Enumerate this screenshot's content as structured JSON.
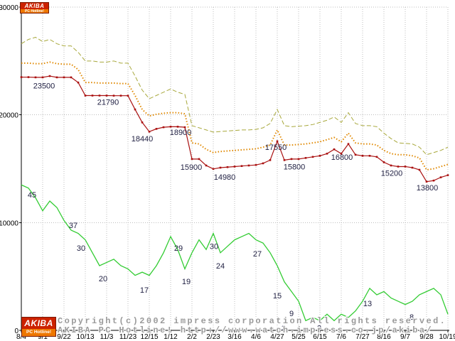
{
  "logo": {
    "title": "AKIBA",
    "subtitle": "PC Hotline!"
  },
  "footer": {
    "copyright": "Copyright(c)2002 impress corporation All rights reserved.",
    "site_line": "AKIBA PC Hotline! http://www.watch.impress.co.jp/akiba/"
  },
  "colors": {
    "axis": "#000000",
    "grid": "#bdbdbd",
    "annotation": "#222244",
    "tick_label": "#000000",
    "red": "#aa1111",
    "orange": "#e08800",
    "olive": "#a8a83c",
    "green": "#33cc33",
    "logo_red": "#cc2200",
    "logo_orange": "#ee7700",
    "copyright_gray": "#9a9a9a"
  },
  "chart_data": {
    "type": "line",
    "title": "",
    "xlabel": "",
    "ylabel": "",
    "grid": true,
    "legend": "none",
    "x_axis": {
      "tick_labels": [
        "8/4",
        "9/1",
        "9/22",
        "10/13",
        "11/3",
        "11/23",
        "12/15",
        "1/12",
        "2/2",
        "2/23",
        "3/16",
        "4/6",
        "4/27",
        "5/25",
        "6/15",
        "7/6",
        "7/27",
        "8/16",
        "9/7",
        "9/28",
        "10/19"
      ],
      "tick_positions": [
        0,
        3,
        6,
        9,
        12,
        15,
        18,
        21,
        24,
        27,
        30,
        33,
        36,
        39,
        42,
        45,
        48,
        51,
        54,
        57,
        60
      ]
    },
    "y_axis": {
      "tick_labels": [
        "0",
        "10000",
        "20000",
        "30000"
      ],
      "tick_values": [
        0,
        10000,
        20000,
        30000
      ],
      "max": 30000
    },
    "series": [
      {
        "name": "high-price-dashed-olive",
        "color": "#a8a83c",
        "dash": "6,3",
        "width": 1,
        "markers": false,
        "values": [
          26600,
          27000,
          27200,
          26800,
          27000,
          26600,
          26400,
          26400,
          25800,
          25000,
          25000,
          24900,
          24900,
          25000,
          24800,
          24800,
          23600,
          22300,
          21500,
          21800,
          22100,
          22400,
          22100,
          21900,
          19000,
          18800,
          18600,
          18400,
          18450,
          18500,
          18550,
          18600,
          18600,
          18650,
          18800,
          19200,
          20500,
          19000,
          18900,
          18950,
          19000,
          19100,
          19300,
          19500,
          19800,
          19300,
          20200,
          19200,
          19000,
          19000,
          18900,
          18300,
          17800,
          17400,
          17350,
          17300,
          17000,
          16300,
          16500,
          16700,
          17000
        ]
      },
      {
        "name": "mid-price-dotted-orange",
        "color": "#e08800",
        "dash": "1.5,2.5",
        "width": 2,
        "markers": false,
        "values": [
          24800,
          24800,
          24750,
          24750,
          24900,
          24750,
          24700,
          24700,
          24200,
          23000,
          23000,
          22950,
          22950,
          22950,
          22900,
          22900,
          21800,
          20500,
          19900,
          20050,
          20150,
          20200,
          20200,
          20100,
          17400,
          17300,
          16800,
          16500,
          16600,
          16650,
          16700,
          16750,
          16800,
          16850,
          17000,
          17200,
          18600,
          17200,
          17200,
          17250,
          17300,
          17400,
          17500,
          17700,
          17900,
          17500,
          18300,
          17400,
          17300,
          17300,
          17200,
          16700,
          16400,
          16300,
          16300,
          16200,
          16000,
          14900,
          15000,
          15200,
          15400
        ]
      },
      {
        "name": "low-price-solid-red",
        "color": "#aa1111",
        "dash": "",
        "width": 1.2,
        "markers": true,
        "values": [
          23500,
          23500,
          23480,
          23480,
          23600,
          23480,
          23480,
          23480,
          23000,
          21790,
          21790,
          21790,
          21790,
          21780,
          21780,
          21780,
          20500,
          19300,
          18440,
          18700,
          18850,
          18900,
          18900,
          18850,
          15900,
          15900,
          15300,
          14980,
          15100,
          15150,
          15200,
          15250,
          15300,
          15350,
          15500,
          15800,
          17550,
          15800,
          15900,
          15900,
          16000,
          16100,
          16200,
          16400,
          16800,
          16400,
          17300,
          16300,
          16200,
          16200,
          16100,
          15600,
          15300,
          15200,
          15200,
          15100,
          14900,
          13800,
          13900,
          14200,
          14400
        ]
      },
      {
        "name": "shop-count-green",
        "color": "#33cc33",
        "dash": "",
        "width": 1.3,
        "markers": false,
        "value_scale": 300,
        "values": [
          45,
          44,
          41,
          37,
          40,
          38,
          34,
          31,
          30,
          28,
          24,
          20,
          21,
          22,
          20,
          19,
          17,
          18,
          17,
          20,
          24,
          29,
          25,
          19,
          24,
          28,
          25,
          30,
          24,
          26,
          28,
          29,
          30,
          28,
          27,
          24,
          20,
          15,
          12,
          9,
          3,
          4,
          3,
          5,
          3,
          5,
          4,
          6,
          9,
          13,
          11,
          12,
          10,
          9,
          8,
          9,
          11,
          12,
          13,
          11,
          5
        ]
      }
    ],
    "price_annotations": [
      {
        "t": "23500",
        "p": 3.2,
        "v": 22700
      },
      {
        "t": "21790",
        "p": 12.2,
        "v": 21200
      },
      {
        "t": "18440",
        "p": 17.0,
        "v": 17800
      },
      {
        "t": "18900",
        "p": 22.4,
        "v": 18400
      },
      {
        "t": "15900",
        "p": 23.9,
        "v": 15150
      },
      {
        "t": "14980",
        "p": 28.6,
        "v": 14250
      },
      {
        "t": "17550",
        "p": 35.8,
        "v": 17000
      },
      {
        "t": "15800",
        "p": 38.4,
        "v": 15200
      },
      {
        "t": "16800",
        "p": 45.1,
        "v": 16100
      },
      {
        "t": "15200",
        "p": 52.1,
        "v": 14600
      },
      {
        "t": "13800",
        "p": 57.1,
        "v": 13250
      }
    ],
    "count_annotations": [
      {
        "t": "45",
        "p": 1.5,
        "gv": 42
      },
      {
        "t": "37",
        "p": 7.3,
        "gv": 32.5
      },
      {
        "t": "30",
        "p": 8.4,
        "gv": 25.5
      },
      {
        "t": "20",
        "p": 11.5,
        "gv": 16
      },
      {
        "t": "17",
        "p": 17.3,
        "gv": 12.5
      },
      {
        "t": "29",
        "p": 22.1,
        "gv": 25.5
      },
      {
        "t": "19",
        "p": 23.2,
        "gv": 15.2
      },
      {
        "t": "30",
        "p": 27.1,
        "gv": 26
      },
      {
        "t": "24",
        "p": 28.0,
        "gv": 20
      },
      {
        "t": "27",
        "p": 33.2,
        "gv": 23.7
      },
      {
        "t": "15",
        "p": 36.0,
        "gv": 10.8
      },
      {
        "t": "9",
        "p": 38.0,
        "gv": 5.3
      },
      {
        "t": "3",
        "p": 36.9,
        "gv": 0.8
      },
      {
        "t": "3",
        "p": 41.9,
        "gv": 0.8
      },
      {
        "t": "13",
        "p": 48.7,
        "gv": 8.4
      },
      {
        "t": "8",
        "p": 54.9,
        "gv": 4.2
      }
    ]
  }
}
